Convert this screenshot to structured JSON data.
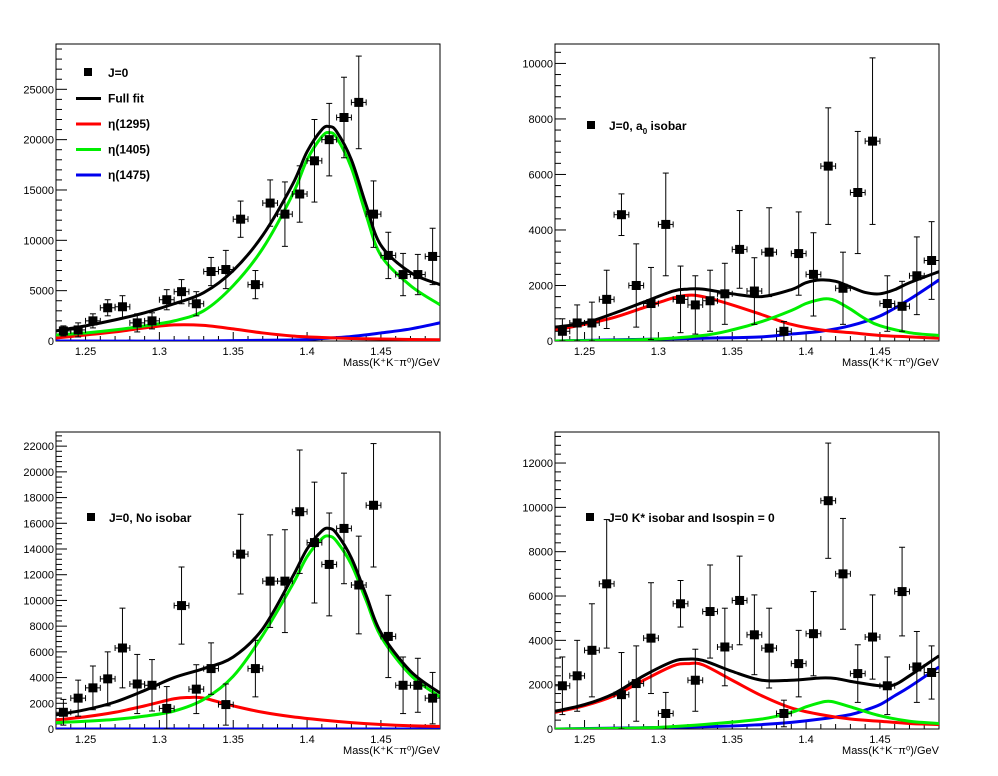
{
  "colors": {
    "data": "#000000",
    "full_fit": "#000000",
    "eta1295": "#ff0000",
    "eta1405": "#00ee00",
    "eta1475": "#0000ee"
  },
  "chart_data": [
    {
      "type": "scatter",
      "panel": "top-left",
      "xlabel": "Mass(K⁺K⁻π⁰)/GeV",
      "xlim": [
        1.23,
        1.49
      ],
      "ylim": [
        0,
        29500
      ],
      "x_ticks": [
        1.25,
        1.3,
        1.35,
        1.4,
        1.45
      ],
      "x_tick_labels": [
        "1.25",
        "1.3",
        "1.35",
        "1.4",
        "1.45"
      ],
      "y_ticks": [
        0,
        5000,
        10000,
        15000,
        20000,
        25000
      ],
      "y_tick_labels": [
        "0",
        "5000",
        "10000",
        "15000",
        "20000",
        "25000"
      ],
      "legend": {
        "position": "top-left",
        "entries": [
          "J=0",
          "Full fit",
          "η(1295)",
          "η(1405)",
          "η(1475)"
        ]
      },
      "points": {
        "x": [
          1.235,
          1.245,
          1.255,
          1.265,
          1.275,
          1.285,
          1.295,
          1.305,
          1.315,
          1.325,
          1.335,
          1.345,
          1.355,
          1.365,
          1.375,
          1.385,
          1.395,
          1.405,
          1.415,
          1.425,
          1.435,
          1.445,
          1.455,
          1.465,
          1.475,
          1.485
        ],
        "y": [
          1000,
          1100,
          2000,
          3300,
          3400,
          1800,
          2000,
          4100,
          4900,
          3700,
          6900,
          7100,
          12100,
          5600,
          13700,
          12600,
          14600,
          17900,
          20000,
          22200,
          23700,
          12600,
          8500,
          6600,
          6600,
          8400
        ],
        "err": [
          500,
          700,
          700,
          800,
          1100,
          900,
          800,
          1000,
          1200,
          1200,
          1400,
          1900,
          1800,
          1400,
          2300,
          3200,
          2800,
          4100,
          3600,
          4000,
          4600,
          3300,
          2300,
          2100,
          2000,
          2800
        ]
      },
      "series": [
        {
          "name": "Full fit",
          "x": [
            1.23,
            1.25,
            1.27,
            1.29,
            1.31,
            1.33,
            1.35,
            1.37,
            1.39,
            1.4,
            1.41,
            1.415,
            1.42,
            1.43,
            1.44,
            1.45,
            1.47,
            1.49
          ],
          "y": [
            1000,
            1500,
            2100,
            2800,
            3700,
            4800,
            7000,
            10500,
            15500,
            18800,
            21000,
            21300,
            20800,
            18000,
            13500,
            9500,
            6800,
            5600
          ]
        },
        {
          "name": "η(1295)",
          "x": [
            1.23,
            1.25,
            1.27,
            1.29,
            1.31,
            1.33,
            1.35,
            1.37,
            1.39,
            1.41,
            1.43,
            1.45,
            1.47,
            1.49
          ],
          "y": [
            300,
            600,
            900,
            1300,
            1600,
            1550,
            1200,
            800,
            500,
            350,
            250,
            200,
            150,
            120
          ]
        },
        {
          "name": "η(1405)",
          "x": [
            1.23,
            1.25,
            1.27,
            1.29,
            1.31,
            1.33,
            1.35,
            1.37,
            1.39,
            1.4,
            1.41,
            1.415,
            1.42,
            1.43,
            1.44,
            1.45,
            1.47,
            1.49
          ],
          "y": [
            600,
            800,
            1100,
            1500,
            2000,
            3000,
            5500,
            9200,
            14500,
            18000,
            20300,
            20700,
            20200,
            17200,
            12500,
            8500,
            5500,
            3600
          ]
        },
        {
          "name": "η(1475)",
          "x": [
            1.23,
            1.33,
            1.39,
            1.41,
            1.43,
            1.45,
            1.47,
            1.49
          ],
          "y": [
            0,
            0,
            100,
            250,
            450,
            800,
            1200,
            1800
          ]
        }
      ]
    },
    {
      "type": "scatter",
      "panel": "top-right",
      "xlabel": "Mass(K⁺K⁻π⁰)/GeV",
      "xlim": [
        1.23,
        1.49
      ],
      "ylim": [
        0,
        10700
      ],
      "x_ticks": [
        1.25,
        1.3,
        1.35,
        1.4,
        1.45
      ],
      "x_tick_labels": [
        "1.25",
        "1.3",
        "1.35",
        "1.4",
        "1.45"
      ],
      "y_ticks": [
        0,
        2000,
        4000,
        6000,
        8000,
        10000
      ],
      "y_tick_labels": [
        "0",
        "2000",
        "4000",
        "6000",
        "8000",
        "10000"
      ],
      "legend": {
        "position": "top-left",
        "entries": [
          "J=0, a",
          "0",
          " isobar"
        ]
      },
      "points": {
        "x": [
          1.235,
          1.245,
          1.255,
          1.265,
          1.275,
          1.285,
          1.295,
          1.305,
          1.315,
          1.325,
          1.335,
          1.345,
          1.355,
          1.365,
          1.375,
          1.385,
          1.395,
          1.405,
          1.415,
          1.425,
          1.435,
          1.445,
          1.455,
          1.465,
          1.475,
          1.485
        ],
        "y": [
          350,
          650,
          650,
          1500,
          4550,
          2000,
          1350,
          4200,
          1500,
          1300,
          1450,
          1700,
          3300,
          1800,
          3200,
          350,
          3150,
          2400,
          6300,
          1900,
          5350,
          7200,
          1350,
          1250,
          2350,
          2900
        ],
        "err": [
          450,
          650,
          750,
          1050,
          750,
          1500,
          1300,
          1850,
          1200,
          1050,
          1100,
          1100,
          1400,
          1200,
          1600,
          350,
          1500,
          1500,
          2100,
          1300,
          2200,
          3000,
          1000,
          900,
          1400,
          1400
        ]
      },
      "series": [
        {
          "name": "Full fit",
          "x": [
            1.23,
            1.25,
            1.27,
            1.29,
            1.31,
            1.32,
            1.33,
            1.35,
            1.37,
            1.39,
            1.4,
            1.41,
            1.42,
            1.43,
            1.44,
            1.45,
            1.46,
            1.47,
            1.49
          ],
          "y": [
            500,
            650,
            1000,
            1400,
            1800,
            1870,
            1870,
            1700,
            1600,
            1850,
            2100,
            2200,
            2150,
            1950,
            1750,
            1700,
            1850,
            2100,
            2500
          ]
        },
        {
          "name": "η(1295)",
          "x": [
            1.23,
            1.25,
            1.27,
            1.29,
            1.31,
            1.32,
            1.33,
            1.35,
            1.37,
            1.39,
            1.41,
            1.43,
            1.45,
            1.47,
            1.49
          ],
          "y": [
            400,
            600,
            850,
            1200,
            1550,
            1650,
            1600,
            1300,
            950,
            600,
            400,
            300,
            200,
            150,
            100
          ]
        },
        {
          "name": "η(1405)",
          "x": [
            1.23,
            1.29,
            1.33,
            1.35,
            1.37,
            1.39,
            1.4,
            1.41,
            1.415,
            1.42,
            1.43,
            1.44,
            1.45,
            1.47,
            1.49
          ],
          "y": [
            0,
            50,
            200,
            400,
            700,
            1100,
            1350,
            1500,
            1520,
            1450,
            1150,
            800,
            550,
            300,
            200
          ]
        },
        {
          "name": "η(1475)",
          "x": [
            1.23,
            1.33,
            1.37,
            1.39,
            1.41,
            1.43,
            1.45,
            1.47,
            1.49
          ],
          "y": [
            0,
            100,
            150,
            250,
            350,
            550,
            900,
            1500,
            2200
          ]
        }
      ]
    },
    {
      "type": "scatter",
      "panel": "bottom-left",
      "xlabel": "Mass(K⁺K⁻π⁰)/GeV",
      "xlim": [
        1.23,
        1.49
      ],
      "ylim": [
        0,
        23100
      ],
      "x_ticks": [
        1.25,
        1.3,
        1.35,
        1.4,
        1.45
      ],
      "x_tick_labels": [
        "1.25",
        "1.3",
        "1.35",
        "1.4",
        "1.45"
      ],
      "y_ticks": [
        0,
        2000,
        4000,
        6000,
        8000,
        10000,
        12000,
        14000,
        16000,
        18000,
        20000,
        22000
      ],
      "y_tick_labels": [
        "0",
        "2000",
        "4000",
        "6000",
        "8000",
        "10000",
        "12000",
        "14000",
        "16000",
        "18000",
        "20000",
        "22000"
      ],
      "legend": {
        "position": "top-left",
        "entries": [
          "J=0, No isobar"
        ]
      },
      "points": {
        "x": [
          1.235,
          1.245,
          1.255,
          1.265,
          1.275,
          1.285,
          1.295,
          1.305,
          1.315,
          1.325,
          1.335,
          1.345,
          1.355,
          1.365,
          1.375,
          1.385,
          1.395,
          1.405,
          1.415,
          1.425,
          1.435,
          1.445,
          1.455,
          1.465,
          1.475,
          1.485
        ],
        "y": [
          1300,
          2400,
          3200,
          3900,
          6300,
          3500,
          3400,
          1600,
          9600,
          3100,
          4700,
          1900,
          13600,
          4700,
          11500,
          11500,
          16900,
          14500,
          12800,
          15600,
          11200,
          17400,
          7200,
          3400,
          3400,
          2400
        ],
        "err": [
          1000,
          1400,
          1700,
          2100,
          3100,
          2300,
          2000,
          1700,
          3000,
          1900,
          2000,
          1600,
          3100,
          2200,
          3600,
          4000,
          4800,
          4700,
          4000,
          4300,
          3800,
          4800,
          3200,
          2200,
          2100,
          2000
        ]
      },
      "series": [
        {
          "name": "Full fit",
          "x": [
            1.23,
            1.25,
            1.27,
            1.29,
            1.31,
            1.33,
            1.35,
            1.37,
            1.39,
            1.4,
            1.41,
            1.415,
            1.42,
            1.43,
            1.44,
            1.45,
            1.47,
            1.49
          ],
          "y": [
            1100,
            1500,
            2100,
            3000,
            4000,
            4700,
            5600,
            7800,
            11800,
            14000,
            15400,
            15600,
            15200,
            13300,
            10400,
            7500,
            4500,
            2800
          ]
        },
        {
          "name": "η(1295)",
          "x": [
            1.23,
            1.25,
            1.27,
            1.29,
            1.31,
            1.32,
            1.33,
            1.35,
            1.37,
            1.39,
            1.41,
            1.43,
            1.45,
            1.47,
            1.49
          ],
          "y": [
            700,
            950,
            1300,
            1800,
            2350,
            2450,
            2400,
            1800,
            1300,
            950,
            700,
            500,
            350,
            250,
            200
          ]
        },
        {
          "name": "η(1405)",
          "x": [
            1.23,
            1.25,
            1.27,
            1.29,
            1.31,
            1.33,
            1.35,
            1.37,
            1.39,
            1.4,
            1.41,
            1.415,
            1.42,
            1.43,
            1.44,
            1.45,
            1.47,
            1.49
          ],
          "y": [
            500,
            600,
            750,
            1000,
            1400,
            2300,
            4100,
            7300,
            11200,
            13400,
            14800,
            15000,
            14600,
            12800,
            10000,
            7200,
            4200,
            2500
          ]
        },
        {
          "name": "η(1475)",
          "x": [
            1.23,
            1.49
          ],
          "y": [
            0,
            0
          ]
        }
      ]
    },
    {
      "type": "scatter",
      "panel": "bottom-right",
      "xlabel": "Mass(K⁺K⁻π⁰)/GeV",
      "xlim": [
        1.23,
        1.49
      ],
      "ylim": [
        0,
        13400
      ],
      "x_ticks": [
        1.25,
        1.3,
        1.35,
        1.4,
        1.45
      ],
      "x_tick_labels": [
        "1.25",
        "1.3",
        "1.35",
        "1.4",
        "1.45"
      ],
      "y_ticks": [
        0,
        2000,
        4000,
        6000,
        8000,
        10000,
        12000
      ],
      "y_tick_labels": [
        "0",
        "2000",
        "4000",
        "6000",
        "8000",
        "10000",
        "12000"
      ],
      "legend": {
        "position": "top-left",
        "entries": [
          "J=0 K* isobar and Isospin = 0"
        ]
      },
      "points": {
        "x": [
          1.235,
          1.245,
          1.255,
          1.265,
          1.275,
          1.285,
          1.295,
          1.305,
          1.315,
          1.325,
          1.335,
          1.345,
          1.355,
          1.365,
          1.375,
          1.385,
          1.395,
          1.405,
          1.415,
          1.425,
          1.435,
          1.445,
          1.455,
          1.465,
          1.475,
          1.485
        ],
        "y": [
          1950,
          2400,
          3550,
          6550,
          1550,
          2050,
          4100,
          700,
          5650,
          2200,
          5300,
          3700,
          5800,
          4250,
          3650,
          700,
          2950,
          4300,
          10300,
          7000,
          2500,
          4150,
          1950,
          6200,
          2800,
          2550
        ],
        "err": [
          1300,
          1600,
          2100,
          2900,
          1900,
          1700,
          2500,
          950,
          1050,
          1400,
          2100,
          1750,
          2000,
          1800,
          1800,
          600,
          1500,
          1900,
          2600,
          2500,
          1300,
          1900,
          1300,
          2000,
          1600,
          1200
        ]
      },
      "series": [
        {
          "name": "Full fit",
          "x": [
            1.23,
            1.25,
            1.27,
            1.29,
            1.31,
            1.32,
            1.33,
            1.35,
            1.37,
            1.39,
            1.41,
            1.42,
            1.43,
            1.45,
            1.46,
            1.47,
            1.49
          ],
          "y": [
            800,
            1100,
            1600,
            2400,
            3050,
            3150,
            3100,
            2600,
            2200,
            2200,
            2300,
            2280,
            2150,
            1950,
            2000,
            2400,
            3300
          ]
        },
        {
          "name": "η(1295)",
          "x": [
            1.23,
            1.25,
            1.27,
            1.29,
            1.31,
            1.32,
            1.33,
            1.35,
            1.37,
            1.39,
            1.41,
            1.43,
            1.45,
            1.47,
            1.49
          ],
          "y": [
            750,
            1050,
            1500,
            2200,
            2850,
            2950,
            2900,
            2200,
            1500,
            950,
            650,
            450,
            350,
            250,
            200
          ]
        },
        {
          "name": "η(1405)",
          "x": [
            1.23,
            1.29,
            1.33,
            1.37,
            1.39,
            1.4,
            1.41,
            1.415,
            1.42,
            1.43,
            1.45,
            1.47,
            1.49
          ],
          "y": [
            0,
            50,
            200,
            450,
            750,
            1000,
            1200,
            1250,
            1200,
            1000,
            600,
            350,
            250
          ]
        },
        {
          "name": "η(1475)",
          "x": [
            1.23,
            1.33,
            1.37,
            1.39,
            1.41,
            1.43,
            1.44,
            1.45,
            1.46,
            1.47,
            1.49
          ],
          "y": [
            0,
            100,
            200,
            300,
            450,
            650,
            850,
            1100,
            1500,
            1900,
            2800
          ]
        }
      ]
    }
  ]
}
